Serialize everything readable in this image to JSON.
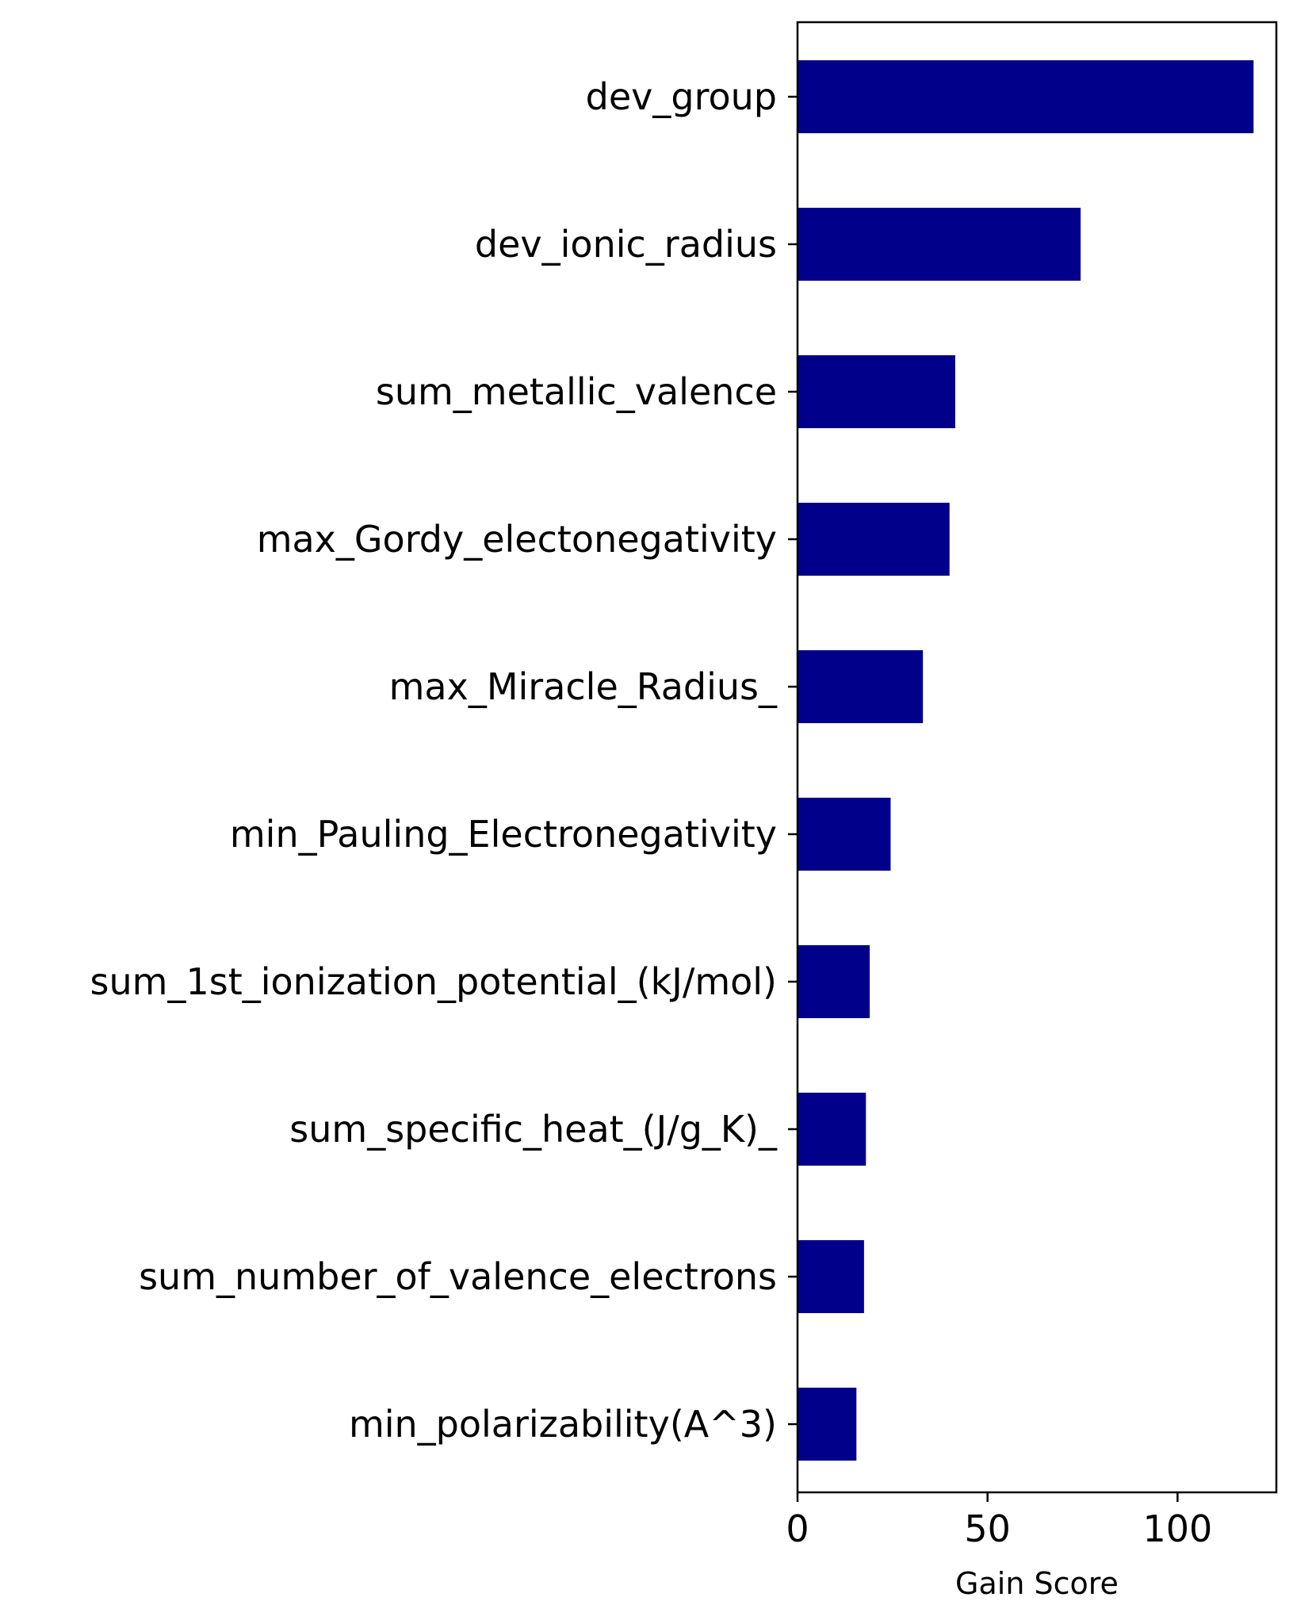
{
  "chart_data": {
    "type": "bar",
    "orientation": "horizontal",
    "categories": [
      "dev_group",
      "dev_ionic_radius",
      "sum_metallic_valence",
      "max_Gordy_electonegativity",
      "max_Miracle_Radius_",
      "min_Pauling_Electronegativity",
      "sum_1st_ionization_potential_(kJ/mol)",
      "sum_specific_heat_(J/g_K)_",
      "sum_number_of_valence_electrons",
      "min_polarizability(A^3)"
    ],
    "values": [
      120,
      74.5,
      41.5,
      40,
      33,
      24.5,
      19,
      18,
      17.5,
      15.5
    ],
    "xlabel": "Gain Score",
    "ylabel": "",
    "xlim": [
      0,
      126
    ],
    "xticks": [
      {
        "value": 0,
        "label": "0"
      },
      {
        "value": 50,
        "label": "50"
      },
      {
        "value": 100,
        "label": "100"
      }
    ],
    "bar_color": "#00008b",
    "grid": false,
    "legend": "none"
  }
}
